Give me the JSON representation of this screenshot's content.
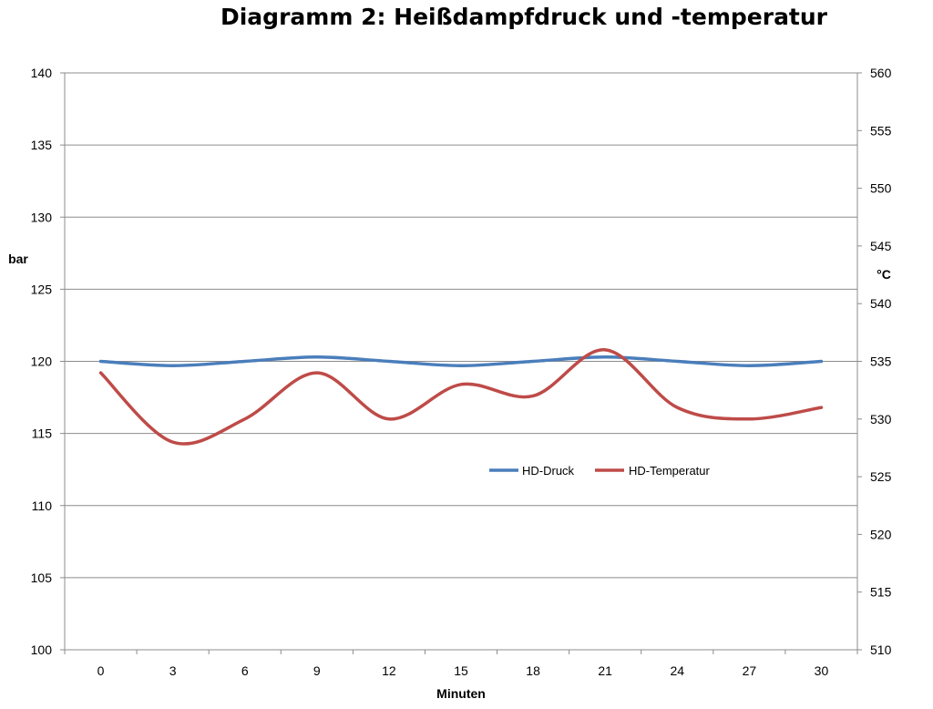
{
  "chart_data": {
    "type": "line",
    "title": "Diagramm 2: Heißdampfdruck und -temperatur",
    "xlabel": "Minuten",
    "ylabel_left": "bar",
    "ylabel_right": "°C",
    "x": [
      0,
      3,
      6,
      9,
      12,
      15,
      18,
      21,
      24,
      27,
      30
    ],
    "ylim_left": [
      100,
      140
    ],
    "yticks_left": [
      100,
      105,
      110,
      115,
      120,
      125,
      130,
      135,
      140
    ],
    "ylim_right": [
      510,
      560
    ],
    "yticks_right": [
      510,
      515,
      520,
      525,
      530,
      535,
      540,
      545,
      550,
      555,
      560
    ],
    "grid": true,
    "legend_placement": "center-right",
    "series": [
      {
        "name": "HD-Druck",
        "axis": "left",
        "color": "#4a7ebb",
        "values": [
          120,
          119.7,
          120,
          120.3,
          120,
          119.7,
          120,
          120.3,
          120,
          119.7,
          120
        ]
      },
      {
        "name": "HD-Temperatur",
        "axis": "right",
        "color": "#be4b48",
        "values": [
          534,
          528,
          530,
          534,
          530,
          533,
          532,
          536,
          531,
          530,
          531
        ]
      }
    ]
  }
}
